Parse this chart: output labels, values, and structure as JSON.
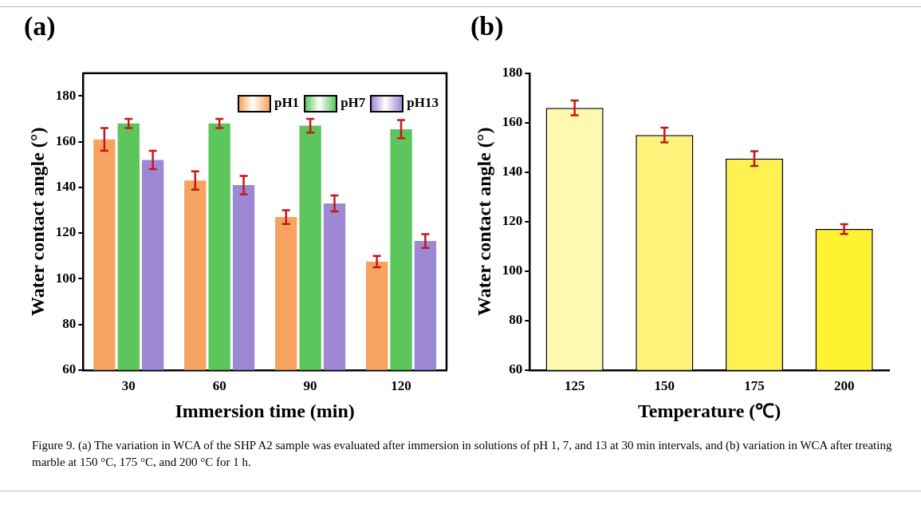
{
  "chart_data": [
    {
      "type": "bar",
      "title": "(a)",
      "xlabel": "Immersion time (min)",
      "ylabel": "Water contact angle (°)",
      "categories": [
        "30",
        "60",
        "90",
        "120"
      ],
      "series": [
        {
          "name": "pH1",
          "color": "#f5a35e",
          "values": [
            161,
            143,
            127,
            107.5
          ],
          "errors": [
            5,
            4,
            3,
            2.5
          ]
        },
        {
          "name": "pH7",
          "color": "#5cc65c",
          "values": [
            168,
            168,
            167,
            165.5
          ],
          "errors": [
            2,
            2,
            3,
            4
          ]
        },
        {
          "name": "pH13",
          "color": "#9d88d4",
          "values": [
            152,
            141,
            133,
            116.5
          ],
          "errors": [
            4,
            4,
            3.5,
            3
          ]
        }
      ],
      "ylim": [
        60,
        190
      ],
      "yticks": [
        60,
        80,
        100,
        120,
        140,
        160,
        180
      ],
      "legend": "top right",
      "annotations": [
        "Figure 9. (a) The variation in WCA of the SHP A2 sample was evaluated after immersion in solutions of pH 1, 7, and 13 at 30 min intervals, and (b) variation in WCA after treating marble at 150 °C, 175 °C, and 200 °C for 1 h."
      ]
    },
    {
      "type": "bar",
      "title": "(b)",
      "xlabel": "Temperature (℃)",
      "ylabel": "Water contact angle (°)",
      "categories": [
        "125",
        "150",
        "175",
        "200"
      ],
      "values": [
        166,
        155,
        145.5,
        117
      ],
      "errors": [
        3,
        3,
        3,
        2
      ],
      "colors": [
        "#fff8b0",
        "#fff27a",
        "#fff250",
        "#fff230"
      ],
      "ylim": [
        60,
        180
      ],
      "yticks": [
        60,
        80,
        100,
        120,
        140,
        160,
        180
      ],
      "legend": false
    }
  ]
}
